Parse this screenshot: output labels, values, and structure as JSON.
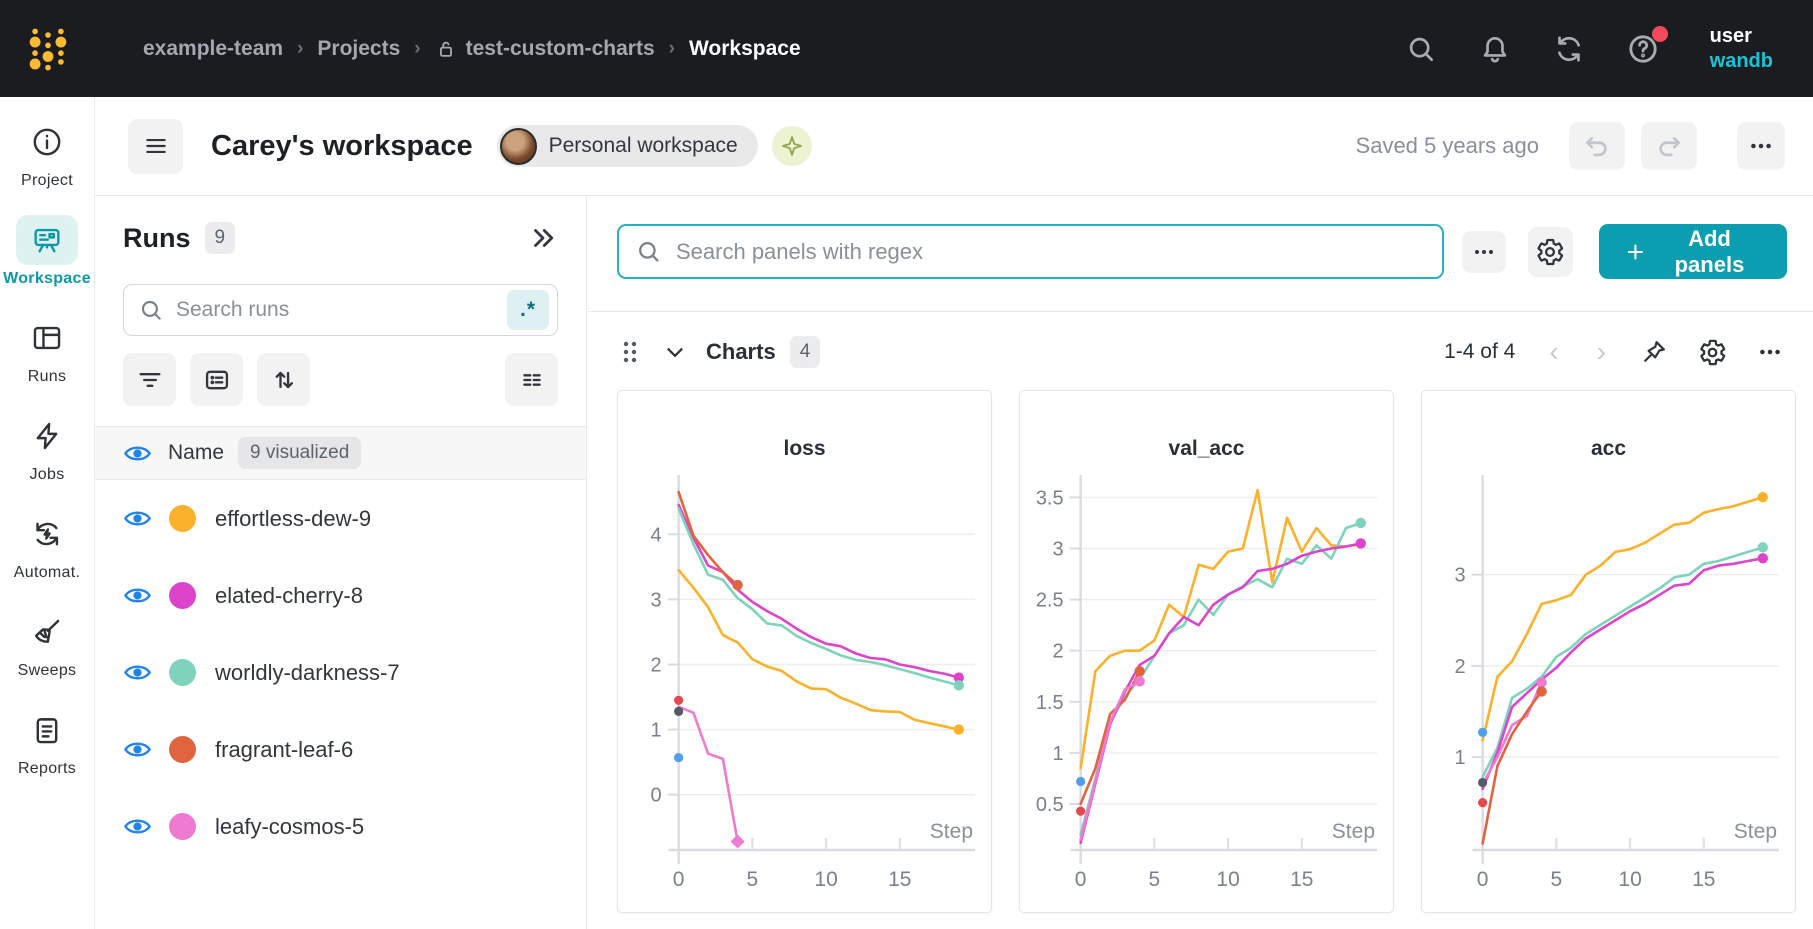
{
  "topbar": {
    "breadcrumb": [
      "example-team",
      "Projects",
      "test-custom-charts",
      "Workspace"
    ],
    "user_name": "user",
    "user_org": "wandb"
  },
  "workspace_header": {
    "title": "Carey's workspace",
    "badge": "Personal workspace",
    "saved": "Saved 5 years ago"
  },
  "nav_rail": {
    "items": [
      {
        "label": "Project",
        "icon": "info-icon",
        "active": false
      },
      {
        "label": "Workspace",
        "icon": "workspace-icon",
        "active": true
      },
      {
        "label": "Runs",
        "icon": "runs-table-icon",
        "active": false
      },
      {
        "label": "Jobs",
        "icon": "lightning-icon",
        "active": false
      },
      {
        "label": "Automat.",
        "icon": "automations-icon",
        "active": false
      },
      {
        "label": "Sweeps",
        "icon": "broom-icon",
        "active": false
      },
      {
        "label": "Reports",
        "icon": "clipboard-icon",
        "active": false
      }
    ]
  },
  "runs_panel": {
    "title": "Runs",
    "count": "9",
    "search_placeholder": "Search runs",
    "regex_label": ".*",
    "header_label": "Name",
    "header_badge": "9 visualized",
    "items": [
      {
        "name": "effortless-dew-9",
        "color": "#FCB12B"
      },
      {
        "name": "elated-cherry-8",
        "color": "#DD44CC"
      },
      {
        "name": "worldly-darkness-7",
        "color": "#7FD2BC"
      },
      {
        "name": "fragrant-leaf-6",
        "color": "#E0653F"
      },
      {
        "name": "leafy-cosmos-5",
        "color": "#EE7AD2"
      }
    ]
  },
  "panels_toolbar": {
    "search_placeholder": "Search panels with regex",
    "add_panels_label": "Add panels"
  },
  "charts_section": {
    "title": "Charts",
    "count": "4",
    "pagination": "1-4 of 4"
  },
  "chart_data": [
    {
      "type": "line",
      "title": "loss",
      "xlabel": "Step",
      "xlim": [
        -0.45,
        20.1
      ],
      "ylim": [
        -0.85,
        4.85
      ],
      "xticks": [
        0,
        5,
        10,
        15
      ],
      "yticks": [
        0,
        1,
        2,
        3,
        4
      ],
      "series": [
        {
          "name": "elated-cherry-8",
          "color": "#DD44CC",
          "x_start": 0,
          "end": "dot",
          "values": [
            4.45,
            3.95,
            3.52,
            3.42,
            3.15,
            2.96,
            2.82,
            2.7,
            2.55,
            2.42,
            2.32,
            2.28,
            2.17,
            2.1,
            2.08,
            2.0,
            1.96,
            1.9,
            1.86,
            1.8
          ]
        },
        {
          "name": "worldly-darkness-7",
          "color": "#7FD2BC",
          "x_start": 0,
          "end": "dot",
          "values": [
            4.4,
            3.85,
            3.38,
            3.3,
            3.02,
            2.85,
            2.63,
            2.6,
            2.44,
            2.33,
            2.24,
            2.14,
            2.07,
            2.04,
            1.99,
            1.93,
            1.87,
            1.8,
            1.74,
            1.68
          ]
        },
        {
          "name": "effortless-dew-9",
          "color": "#FCB12B",
          "x_start": 0,
          "end": "dot",
          "values": [
            3.45,
            3.18,
            2.88,
            2.45,
            2.34,
            2.08,
            1.97,
            1.9,
            1.74,
            1.63,
            1.62,
            1.49,
            1.4,
            1.3,
            1.28,
            1.27,
            1.15,
            1.1,
            1.05,
            1.0
          ]
        },
        {
          "name": "fragrant-leaf-6",
          "color": "#E0653F",
          "x_start": 0,
          "end": "dot",
          "values": [
            4.65,
            3.98,
            3.68,
            3.42,
            3.22
          ]
        },
        {
          "name": "leafy-cosmos-5",
          "color": "#EE7AD2",
          "x_start": 0,
          "end": "diamond",
          "values": [
            1.35,
            1.26,
            0.63,
            0.55,
            -0.72
          ]
        }
      ],
      "points": [
        {
          "color": "#E4494F",
          "x": 0,
          "y": 1.45
        },
        {
          "color": "#565B63",
          "x": 0,
          "y": 1.28
        },
        {
          "color": "#529EE8",
          "x": 0,
          "y": 0.57
        }
      ]
    },
    {
      "type": "line",
      "title": "val_acc",
      "xlabel": "Step",
      "xlim": [
        -0.45,
        20.1
      ],
      "ylim": [
        0.05,
        3.68
      ],
      "xticks": [
        0,
        5,
        10,
        15
      ],
      "yticks": [
        0.5,
        1,
        1.5,
        2,
        2.5,
        3,
        3.5
      ],
      "series": [
        {
          "name": "effortless-dew-9",
          "color": "#FCB12B",
          "x_start": 0,
          "end": "none",
          "values": [
            0.85,
            1.8,
            1.95,
            2.0,
            2.0,
            2.1,
            2.45,
            2.33,
            2.84,
            2.8,
            2.97,
            3.0,
            3.57,
            2.67,
            3.3,
            2.97,
            3.2,
            3.03,
            3.02,
            3.04
          ]
        },
        {
          "name": "worldly-darkness-7",
          "color": "#7FD2BC",
          "x_start": 0,
          "end": "dot",
          "values": [
            0.2,
            0.75,
            1.3,
            1.55,
            1.72,
            1.95,
            2.17,
            2.25,
            2.5,
            2.35,
            2.55,
            2.63,
            2.7,
            2.62,
            2.9,
            2.85,
            3.03,
            2.9,
            3.2,
            3.25
          ]
        },
        {
          "name": "elated-cherry-8",
          "color": "#DD44CC",
          "x_start": 0,
          "end": "dot",
          "values": [
            0.12,
            0.7,
            1.28,
            1.6,
            1.86,
            1.95,
            2.17,
            2.33,
            2.25,
            2.45,
            2.55,
            2.62,
            2.78,
            2.8,
            2.85,
            2.93,
            2.97,
            3.0,
            3.02,
            3.05
          ]
        },
        {
          "name": "fragrant-leaf-6",
          "color": "#E0653F",
          "x_start": 0,
          "end": "dot",
          "values": [
            0.5,
            0.85,
            1.38,
            1.52,
            1.8
          ]
        },
        {
          "name": "leafy-cosmos-5",
          "color": "#EE7AD2",
          "x_start": 0,
          "end": "dot",
          "values": [
            0.15,
            0.72,
            1.3,
            1.62,
            1.7
          ]
        }
      ],
      "points": [
        {
          "color": "#529EE8",
          "x": 0,
          "y": 0.72
        },
        {
          "color": "#E4494F",
          "x": 0,
          "y": 0.43
        }
      ]
    },
    {
      "type": "line",
      "title": "acc",
      "xlabel": "Step",
      "xlim": [
        -0.45,
        20.1
      ],
      "ylim": [
        -0.02,
        4.05
      ],
      "xticks": [
        0,
        5,
        10,
        15
      ],
      "yticks": [
        1,
        2,
        3
      ],
      "series": [
        {
          "name": "effortless-dew-9",
          "color": "#FCB12B",
          "x_start": 0,
          "end": "dot",
          "values": [
            1.18,
            1.88,
            2.05,
            2.35,
            2.68,
            2.72,
            2.78,
            3.0,
            3.1,
            3.25,
            3.28,
            3.35,
            3.45,
            3.55,
            3.57,
            3.68,
            3.72,
            3.75,
            3.8,
            3.85
          ]
        },
        {
          "name": "worldly-darkness-7",
          "color": "#7FD2BC",
          "x_start": 0,
          "end": "dot",
          "values": [
            0.78,
            1.1,
            1.65,
            1.75,
            1.88,
            2.1,
            2.2,
            2.35,
            2.45,
            2.55,
            2.65,
            2.75,
            2.85,
            2.97,
            3.0,
            3.12,
            3.15,
            3.2,
            3.25,
            3.3
          ]
        },
        {
          "name": "elated-cherry-8",
          "color": "#DD44CC",
          "x_start": 0,
          "end": "dot",
          "values": [
            0.65,
            1.05,
            1.55,
            1.7,
            1.85,
            1.98,
            2.15,
            2.3,
            2.4,
            2.5,
            2.6,
            2.68,
            2.78,
            2.88,
            2.9,
            3.05,
            3.1,
            3.12,
            3.15,
            3.18
          ]
        },
        {
          "name": "leafy-cosmos-5",
          "color": "#EE7AD2",
          "x_start": 0,
          "end": "dot",
          "values": [
            0.7,
            1.0,
            1.35,
            1.45,
            1.82
          ]
        },
        {
          "name": "fragrant-leaf-6",
          "color": "#E0653F",
          "x_start": 0,
          "end": "dot",
          "values": [
            0.05,
            0.9,
            1.25,
            1.5,
            1.72
          ]
        }
      ],
      "points": [
        {
          "color": "#529EE8",
          "x": 0,
          "y": 1.27
        },
        {
          "color": "#565B63",
          "x": 0,
          "y": 0.72
        },
        {
          "color": "#E4494F",
          "x": 0,
          "y": 0.5
        }
      ]
    }
  ],
  "colors": {
    "accent_teal": "#0B9DB0",
    "topbar_bg": "#1A1C20",
    "eye_blue": "#2183E8",
    "org_cyan": "#18C5D8"
  }
}
